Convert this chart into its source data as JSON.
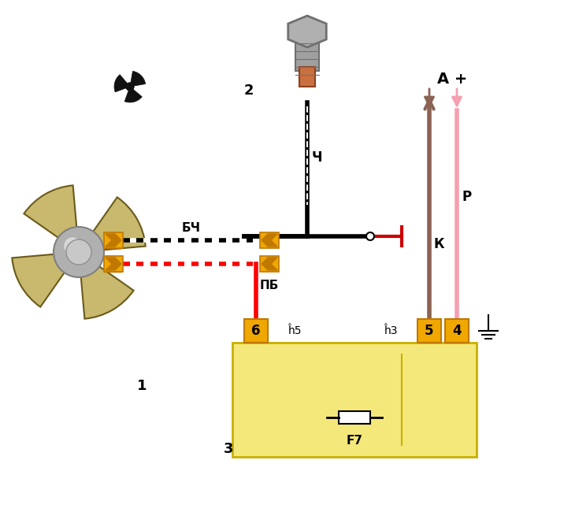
{
  "bg_color": "#ffffff",
  "fan_blade_color": "#c8b96e",
  "fan_motor_color": "#aaaaaa",
  "connector_color": "#f0a800",
  "relay_box_color": "#f5e87a",
  "wire_bch_color1": "#000000",
  "wire_bch_color2": "#ffffff",
  "wire_pb_color1": "#ff0000",
  "wire_pb_color2": "#ffffff",
  "wire_ch_color": "#000000",
  "wire_k_color": "#8b6352",
  "wire_p_color": "#f4a0b0",
  "label_bch": "БЧ",
  "label_pb": "ПБ",
  "label_ch": "Ч",
  "label_k": "К",
  "label_p": "Р",
  "label_a": "А +",
  "label_sh5": "ĥ5",
  "label_sh3": "ĥ3",
  "label_1": "1",
  "label_2": "2",
  "label_3": "3",
  "label_4": "4",
  "label_5": "5",
  "label_6": "6",
  "label_f7": "F7",
  "title_color": "#000000"
}
